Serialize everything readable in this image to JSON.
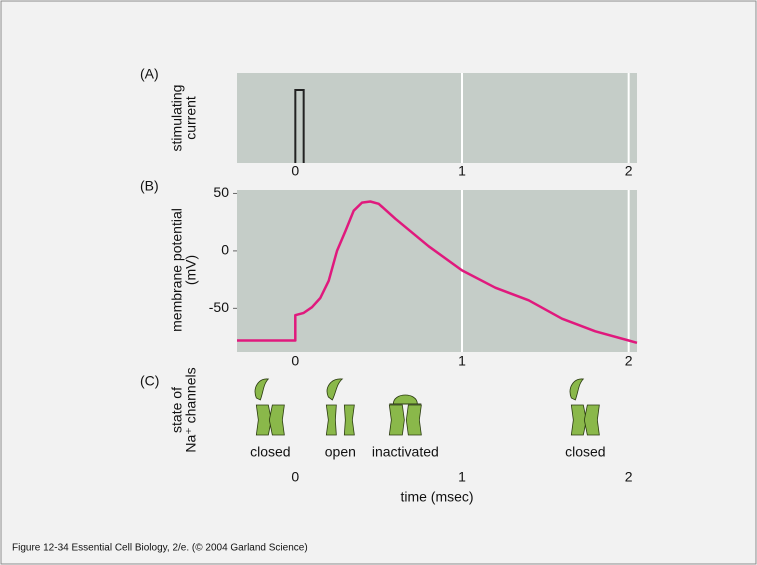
{
  "chart_data": [
    {
      "type": "pulse",
      "label": "(A)",
      "ylabel": [
        "stimulating",
        "current"
      ],
      "xlim": [
        -0.35,
        2.05
      ],
      "xticks": [
        0,
        1,
        2
      ],
      "grid": true,
      "pulse": [
        0,
        0.05
      ],
      "color": "#222222"
    },
    {
      "type": "line",
      "label": "(B)",
      "ylabel": [
        "membrane potential",
        "(mV)"
      ],
      "xlim": [
        -0.35,
        2.05
      ],
      "xticks": [
        0,
        1,
        2
      ],
      "ylim": [
        -88,
        53
      ],
      "yticks": [
        50,
        0,
        -50
      ],
      "grid": true,
      "series": [
        {
          "color": "#e0197d",
          "x": [
            -0.35,
            0,
            0,
            0.05,
            0.1,
            0.15,
            0.2,
            0.25,
            0.3,
            0.35,
            0.4,
            0.45,
            0.5,
            0.6,
            0.8,
            1.0,
            1.2,
            1.4,
            1.6,
            1.8,
            2.0,
            2.05
          ],
          "values": [
            -78,
            -78,
            -56,
            -54,
            -49,
            -41,
            -26,
            0,
            17,
            35,
            42,
            43,
            41,
            28,
            4,
            -17,
            -32,
            -43,
            -59,
            -70,
            -78,
            -80
          ]
        }
      ]
    },
    {
      "type": "states",
      "label": "(C)",
      "ylabel": [
        "state of",
        "Na⁺ channels"
      ],
      "xlim": [
        -0.35,
        2.05
      ],
      "xticks": [
        0,
        1,
        2
      ],
      "xlabel": "time (msec)",
      "color": "#8ab84a",
      "states": [
        {
          "label": "closed",
          "x": -0.15
        },
        {
          "label": "open",
          "x": 0.27
        },
        {
          "label": "inactivated",
          "x": 0.66
        },
        {
          "label": "closed",
          "x": 1.74
        }
      ]
    }
  ],
  "caption": "Figure 12-34  Essential Cell Biology, 2/e. (© 2004 Garland Science)"
}
